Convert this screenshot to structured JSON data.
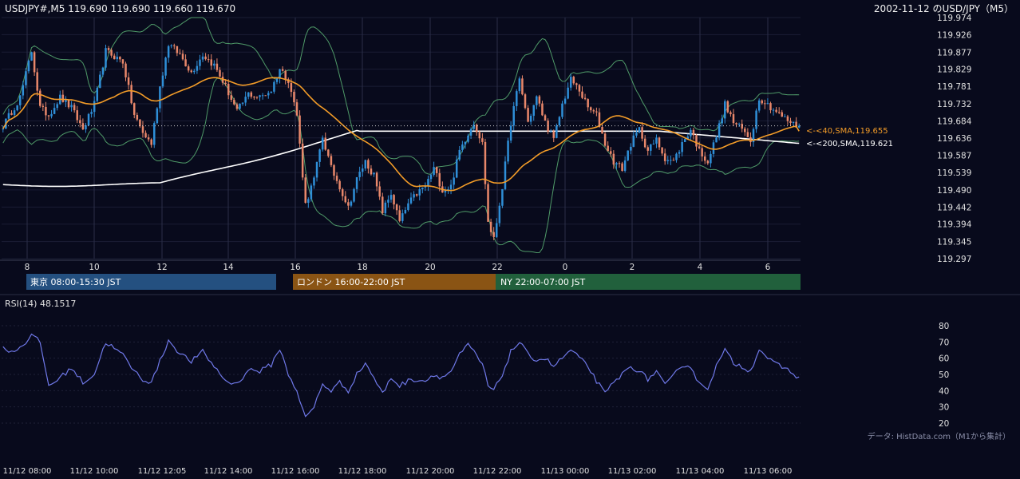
{
  "header": {
    "ohlc_label": "USDJPY#,M5 119.690 119.690 119.660 119.670",
    "date_label": "2002-11-12 のUSD/JPY（M5）"
  },
  "colors": {
    "background": "#080a1c",
    "candle_up": "#2f8fd8",
    "candle_down": "#e8876a",
    "bollinger": "#4f9a68",
    "sma40": "#f39c28",
    "sma200": "#ffffff",
    "rsi": "#6f78e8",
    "tokyo": "#245080",
    "london": "#8a5414",
    "ny": "#21603c"
  },
  "chart_data": [
    {
      "type": "candlestick",
      "title": "",
      "ylim": [
        119.297,
        119.974
      ],
      "y_ticks": [
        "119.974",
        "119.926",
        "119.877",
        "119.829",
        "119.781",
        "119.732",
        "119.684",
        "119.636",
        "119.587",
        "119.539",
        "119.490",
        "119.442",
        "119.394",
        "119.345",
        "119.297"
      ],
      "x_hour_ticks": [
        "8",
        "10",
        "12",
        "14",
        "16",
        "18",
        "20",
        "22",
        "0",
        "2",
        "4",
        "6"
      ],
      "last_price": 119.67,
      "sma40": {
        "label": "<-<40,SMA,119.655",
        "last": 119.655
      },
      "sma200": {
        "label": "<-<200,SMA,119.621",
        "last": 119.621
      },
      "close_path": [
        [
          0,
          119.67
        ],
        [
          6,
          119.75
        ],
        [
          10,
          119.88
        ],
        [
          13,
          119.72
        ],
        [
          16,
          119.7
        ],
        [
          20,
          119.75
        ],
        [
          24,
          119.72
        ],
        [
          28,
          119.66
        ],
        [
          32,
          119.73
        ],
        [
          36,
          119.88
        ],
        [
          42,
          119.85
        ],
        [
          46,
          119.7
        ],
        [
          49,
          119.65
        ],
        [
          52,
          119.62
        ],
        [
          55,
          119.78
        ],
        [
          58,
          119.9
        ],
        [
          62,
          119.87
        ],
        [
          66,
          119.82
        ],
        [
          70,
          119.87
        ],
        [
          74,
          119.84
        ],
        [
          78,
          119.78
        ],
        [
          82,
          119.71
        ],
        [
          86,
          119.76
        ],
        [
          90,
          119.75
        ],
        [
          94,
          119.77
        ],
        [
          97,
          119.83
        ],
        [
          100,
          119.8
        ],
        [
          103,
          119.7
        ],
        [
          106,
          119.45
        ],
        [
          109,
          119.52
        ],
        [
          112,
          119.64
        ],
        [
          115,
          119.55
        ],
        [
          118,
          119.5
        ],
        [
          121,
          119.44
        ],
        [
          124,
          119.52
        ],
        [
          127,
          119.57
        ],
        [
          130,
          119.53
        ],
        [
          133,
          119.43
        ],
        [
          136,
          119.48
        ],
        [
          139,
          119.4
        ],
        [
          142,
          119.45
        ],
        [
          145,
          119.48
        ],
        [
          148,
          119.5
        ],
        [
          151,
          119.55
        ],
        [
          154,
          119.49
        ],
        [
          157,
          119.5
        ],
        [
          160,
          119.6
        ],
        [
          163,
          119.65
        ],
        [
          165,
          119.68
        ],
        [
          168,
          119.62
        ],
        [
          170,
          119.4
        ],
        [
          172,
          119.35
        ],
        [
          175,
          119.5
        ],
        [
          178,
          119.68
        ],
        [
          181,
          119.8
        ],
        [
          184,
          119.68
        ],
        [
          187,
          119.75
        ],
        [
          190,
          119.68
        ],
        [
          193,
          119.63
        ],
        [
          196,
          119.73
        ],
        [
          199,
          119.8
        ],
        [
          202,
          119.77
        ],
        [
          205,
          119.72
        ],
        [
          208,
          119.7
        ],
        [
          211,
          119.62
        ],
        [
          214,
          119.57
        ],
        [
          217,
          119.55
        ],
        [
          220,
          119.62
        ],
        [
          223,
          119.66
        ],
        [
          226,
          119.6
        ],
        [
          229,
          119.63
        ],
        [
          232,
          119.58
        ],
        [
          235,
          119.57
        ],
        [
          238,
          119.62
        ],
        [
          241,
          119.66
        ],
        [
          244,
          119.6
        ],
        [
          247,
          119.57
        ],
        [
          250,
          119.64
        ],
        [
          253,
          119.73
        ],
        [
          256,
          119.68
        ],
        [
          259,
          119.66
        ],
        [
          262,
          119.63
        ],
        [
          265,
          119.75
        ],
        [
          268,
          119.73
        ],
        [
          271,
          119.71
        ],
        [
          274,
          119.69
        ],
        [
          278,
          119.67
        ]
      ]
    },
    {
      "type": "line",
      "title": "RSI(14) 48.1517",
      "ylim": [
        20,
        80
      ],
      "y_ticks": [
        "80",
        "70",
        "60",
        "50",
        "40",
        "30",
        "20"
      ],
      "path": [
        [
          0,
          66
        ],
        [
          4,
          64
        ],
        [
          8,
          70
        ],
        [
          10,
          74
        ],
        [
          13,
          70
        ],
        [
          16,
          43
        ],
        [
          20,
          48
        ],
        [
          24,
          54
        ],
        [
          28,
          45
        ],
        [
          32,
          50
        ],
        [
          36,
          70
        ],
        [
          42,
          62
        ],
        [
          46,
          52
        ],
        [
          49,
          47
        ],
        [
          52,
          45
        ],
        [
          55,
          58
        ],
        [
          58,
          71
        ],
        [
          62,
          63
        ],
        [
          66,
          58
        ],
        [
          70,
          64
        ],
        [
          74,
          55
        ],
        [
          78,
          46
        ],
        [
          82,
          44
        ],
        [
          86,
          53
        ],
        [
          90,
          52
        ],
        [
          94,
          56
        ],
        [
          97,
          66
        ],
        [
          100,
          50
        ],
        [
          103,
          40
        ],
        [
          106,
          23
        ],
        [
          109,
          30
        ],
        [
          112,
          44
        ],
        [
          115,
          40
        ],
        [
          118,
          45
        ],
        [
          121,
          40
        ],
        [
          124,
          50
        ],
        [
          127,
          57
        ],
        [
          130,
          48
        ],
        [
          133,
          38
        ],
        [
          136,
          48
        ],
        [
          139,
          43
        ],
        [
          142,
          46
        ],
        [
          145,
          47
        ],
        [
          148,
          46
        ],
        [
          151,
          50
        ],
        [
          154,
          48
        ],
        [
          157,
          52
        ],
        [
          160,
          62
        ],
        [
          163,
          68
        ],
        [
          165,
          64
        ],
        [
          168,
          56
        ],
        [
          170,
          43
        ],
        [
          172,
          40
        ],
        [
          175,
          50
        ],
        [
          178,
          64
        ],
        [
          181,
          70
        ],
        [
          184,
          62
        ],
        [
          187,
          59
        ],
        [
          190,
          60
        ],
        [
          193,
          55
        ],
        [
          196,
          60
        ],
        [
          199,
          65
        ],
        [
          202,
          60
        ],
        [
          205,
          55
        ],
        [
          208,
          46
        ],
        [
          211,
          38
        ],
        [
          214,
          45
        ],
        [
          217,
          50
        ],
        [
          220,
          55
        ],
        [
          223,
          52
        ],
        [
          226,
          47
        ],
        [
          229,
          52
        ],
        [
          232,
          43
        ],
        [
          235,
          49
        ],
        [
          238,
          56
        ],
        [
          241,
          55
        ],
        [
          244,
          44
        ],
        [
          247,
          42
        ],
        [
          250,
          55
        ],
        [
          253,
          65
        ],
        [
          256,
          57
        ],
        [
          259,
          55
        ],
        [
          262,
          52
        ],
        [
          265,
          66
        ],
        [
          268,
          60
        ],
        [
          271,
          56
        ],
        [
          274,
          54
        ],
        [
          278,
          49
        ]
      ]
    }
  ],
  "sessions": [
    {
      "label": "東京 08:00-15:30 JST"
    },
    {
      "label": "ロンドン 16:00-22:00 JST"
    },
    {
      "label": "NY 22:00-07:00 JST"
    }
  ],
  "time_ticks": [
    "11/12 08:00",
    "11/12 10:00",
    "11/12 12:05",
    "11/12 14:00",
    "11/12 16:00",
    "11/12 18:00",
    "11/12 20:00",
    "11/12 22:00",
    "11/13 00:00",
    "11/13 02:00",
    "11/13 04:00",
    "11/13 06:00"
  ],
  "rsi_label": "RSI(14) 48.1517",
  "source": "データ: HistData.com（M1から集計）"
}
